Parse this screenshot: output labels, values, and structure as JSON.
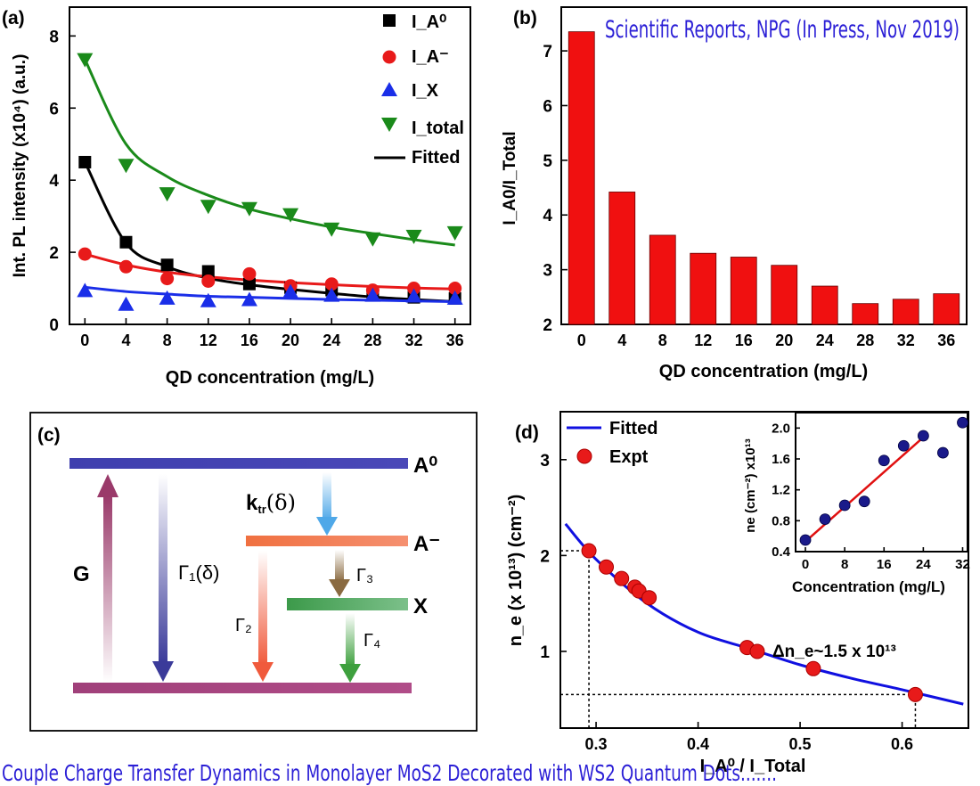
{
  "banner_top": "Scientific Reports, NPG (In Press, Nov 2019)",
  "banner_bottom": "Couple Charge Transfer Dynamics in Monolayer MoS2 Decorated with WS2 Quantum Dots.......",
  "panels": {
    "a": "(a)",
    "b": "(b)",
    "c": "(c)",
    "d": "(d)"
  },
  "colors": {
    "IA0": "#000000",
    "IAminus": "#e81a1a",
    "IX": "#1a2ee8",
    "Itotal": "#1a8a1a",
    "bar": "#f01010",
    "fit_d": "#1010e0",
    "inset_fit": "#e01010",
    "inset_pts": "#1a1a8a"
  },
  "chart_data": [
    {
      "id": "a",
      "type": "scatter",
      "xlabel": "QD concentration (mg/L)",
      "ylabel": "Int. PL intensity (x10⁴) (a.u.)",
      "xlim": [
        -1.5,
        37.5
      ],
      "ylim": [
        0,
        8.8
      ],
      "xticks": [
        0,
        4,
        8,
        12,
        16,
        20,
        24,
        28,
        32,
        36
      ],
      "yticks": [
        0,
        2,
        4,
        6,
        8
      ],
      "legend_position": "top-right",
      "x": [
        0,
        4,
        8,
        12,
        16,
        20,
        24,
        28,
        32,
        36
      ],
      "series": [
        {
          "key": "IA0",
          "name": "I_A⁰",
          "marker": "square",
          "values": [
            4.5,
            2.28,
            1.65,
            1.47,
            1.12,
            1.02,
            0.95,
            0.82,
            0.75,
            0.72
          ],
          "fit": [
            4.5,
            2.25,
            1.6,
            1.28,
            1.1,
            0.97,
            0.86,
            0.76,
            0.69,
            0.63
          ]
        },
        {
          "key": "IAminus",
          "name": "I_A⁻",
          "marker": "circle",
          "values": [
            1.95,
            1.6,
            1.27,
            1.2,
            1.4,
            1.07,
            1.12,
            0.95,
            1.0,
            1.0
          ],
          "fit": [
            1.95,
            1.65,
            1.45,
            1.32,
            1.23,
            1.16,
            1.1,
            1.05,
            1.01,
            0.98
          ]
        },
        {
          "key": "IX",
          "name": "I_X",
          "marker": "triangle-up",
          "values": [
            0.93,
            0.55,
            0.72,
            0.65,
            0.68,
            0.9,
            0.8,
            0.8,
            0.78,
            0.72
          ],
          "fit": [
            1.03,
            0.91,
            0.84,
            0.78,
            0.75,
            0.72,
            0.69,
            0.67,
            0.65,
            0.63
          ]
        },
        {
          "key": "Itotal",
          "name": "I_total",
          "marker": "triangle-down",
          "values": [
            7.35,
            4.42,
            3.63,
            3.28,
            3.22,
            3.05,
            2.65,
            2.38,
            2.45,
            2.55
          ],
          "fit": [
            7.35,
            5.0,
            4.1,
            3.58,
            3.2,
            2.93,
            2.7,
            2.52,
            2.35,
            2.2
          ]
        }
      ],
      "legend_fitted": "Fitted"
    },
    {
      "id": "b",
      "type": "bar",
      "xlabel": "QD concentration (mg/L)",
      "ylabel": "I_A0/I_Total",
      "categories": [
        "0",
        "4",
        "8",
        "12",
        "16",
        "20",
        "24",
        "28",
        "32",
        "36"
      ],
      "values": [
        7.35,
        4.42,
        3.63,
        3.3,
        3.23,
        3.08,
        2.7,
        2.38,
        2.46,
        2.56
      ],
      "ylim": [
        2,
        7.8
      ],
      "yticks": [
        2,
        3,
        4,
        5,
        6,
        7
      ]
    },
    {
      "id": "d",
      "type": "scatter",
      "xlabel": "I_A⁰ / I_Total",
      "ylabel": "n_e (x 10¹³) (cm⁻²)",
      "xlim": [
        0.265,
        0.665
      ],
      "ylim": [
        0.2,
        3.5
      ],
      "xticks": [
        0.3,
        0.4,
        0.5,
        0.6
      ],
      "yticks": [
        1,
        2,
        3
      ],
      "fit_name": "Fitted",
      "points_name": "Expt",
      "fit_curve": {
        "x": [
          0.27,
          0.3,
          0.35,
          0.4,
          0.45,
          0.5,
          0.55,
          0.6,
          0.66
        ],
        "y": [
          2.33,
          1.96,
          1.5,
          1.2,
          1.03,
          0.86,
          0.72,
          0.6,
          0.45
        ]
      },
      "points": {
        "x": [
          0.293,
          0.31,
          0.325,
          0.338,
          0.342,
          0.352,
          0.448,
          0.458,
          0.513,
          0.613
        ],
        "y": [
          2.05,
          1.88,
          1.76,
          1.67,
          1.63,
          1.56,
          1.04,
          1.0,
          0.82,
          0.55
        ]
      },
      "annotation": "Δn_e~1.5 x 10¹³",
      "guide_points": [
        [
          0.293,
          2.05
        ],
        [
          0.613,
          0.55
        ]
      ]
    },
    {
      "id": "d_inset",
      "type": "scatter",
      "xlabel": "Concentration (mg/L)",
      "ylabel": "ne (cm⁻²) x10¹³",
      "xlim": [
        -2,
        33
      ],
      "ylim": [
        0.4,
        2.2
      ],
      "xticks": [
        0,
        8,
        16,
        24,
        32
      ],
      "yticks": [
        0.4,
        0.8,
        1.2,
        1.6,
        2.0
      ],
      "ytick_labels": [
        "0.4",
        "0.8",
        "1.2",
        "1.6",
        "2.0"
      ],
      "x": [
        0,
        4,
        8,
        12,
        16,
        20,
        24,
        28,
        32
      ],
      "values": [
        0.55,
        0.82,
        1.0,
        1.05,
        1.58,
        1.77,
        1.9,
        1.68,
        2.07
      ],
      "fit": {
        "x": [
          0,
          24
        ],
        "y": [
          0.53,
          1.88
        ]
      }
    }
  ],
  "diagram_c": {
    "levels": {
      "A0": "A⁰",
      "Aminus": "A⁻",
      "X": "X"
    },
    "labels": {
      "G": "G",
      "ktr": "k",
      "ktr_sub": "tr",
      "ktr_arg": "(δ)",
      "gamma1": "Γ₁(δ)",
      "gamma2": "Γ₂",
      "gamma3": "Γ₃",
      "gamma4": "Γ₄"
    }
  }
}
